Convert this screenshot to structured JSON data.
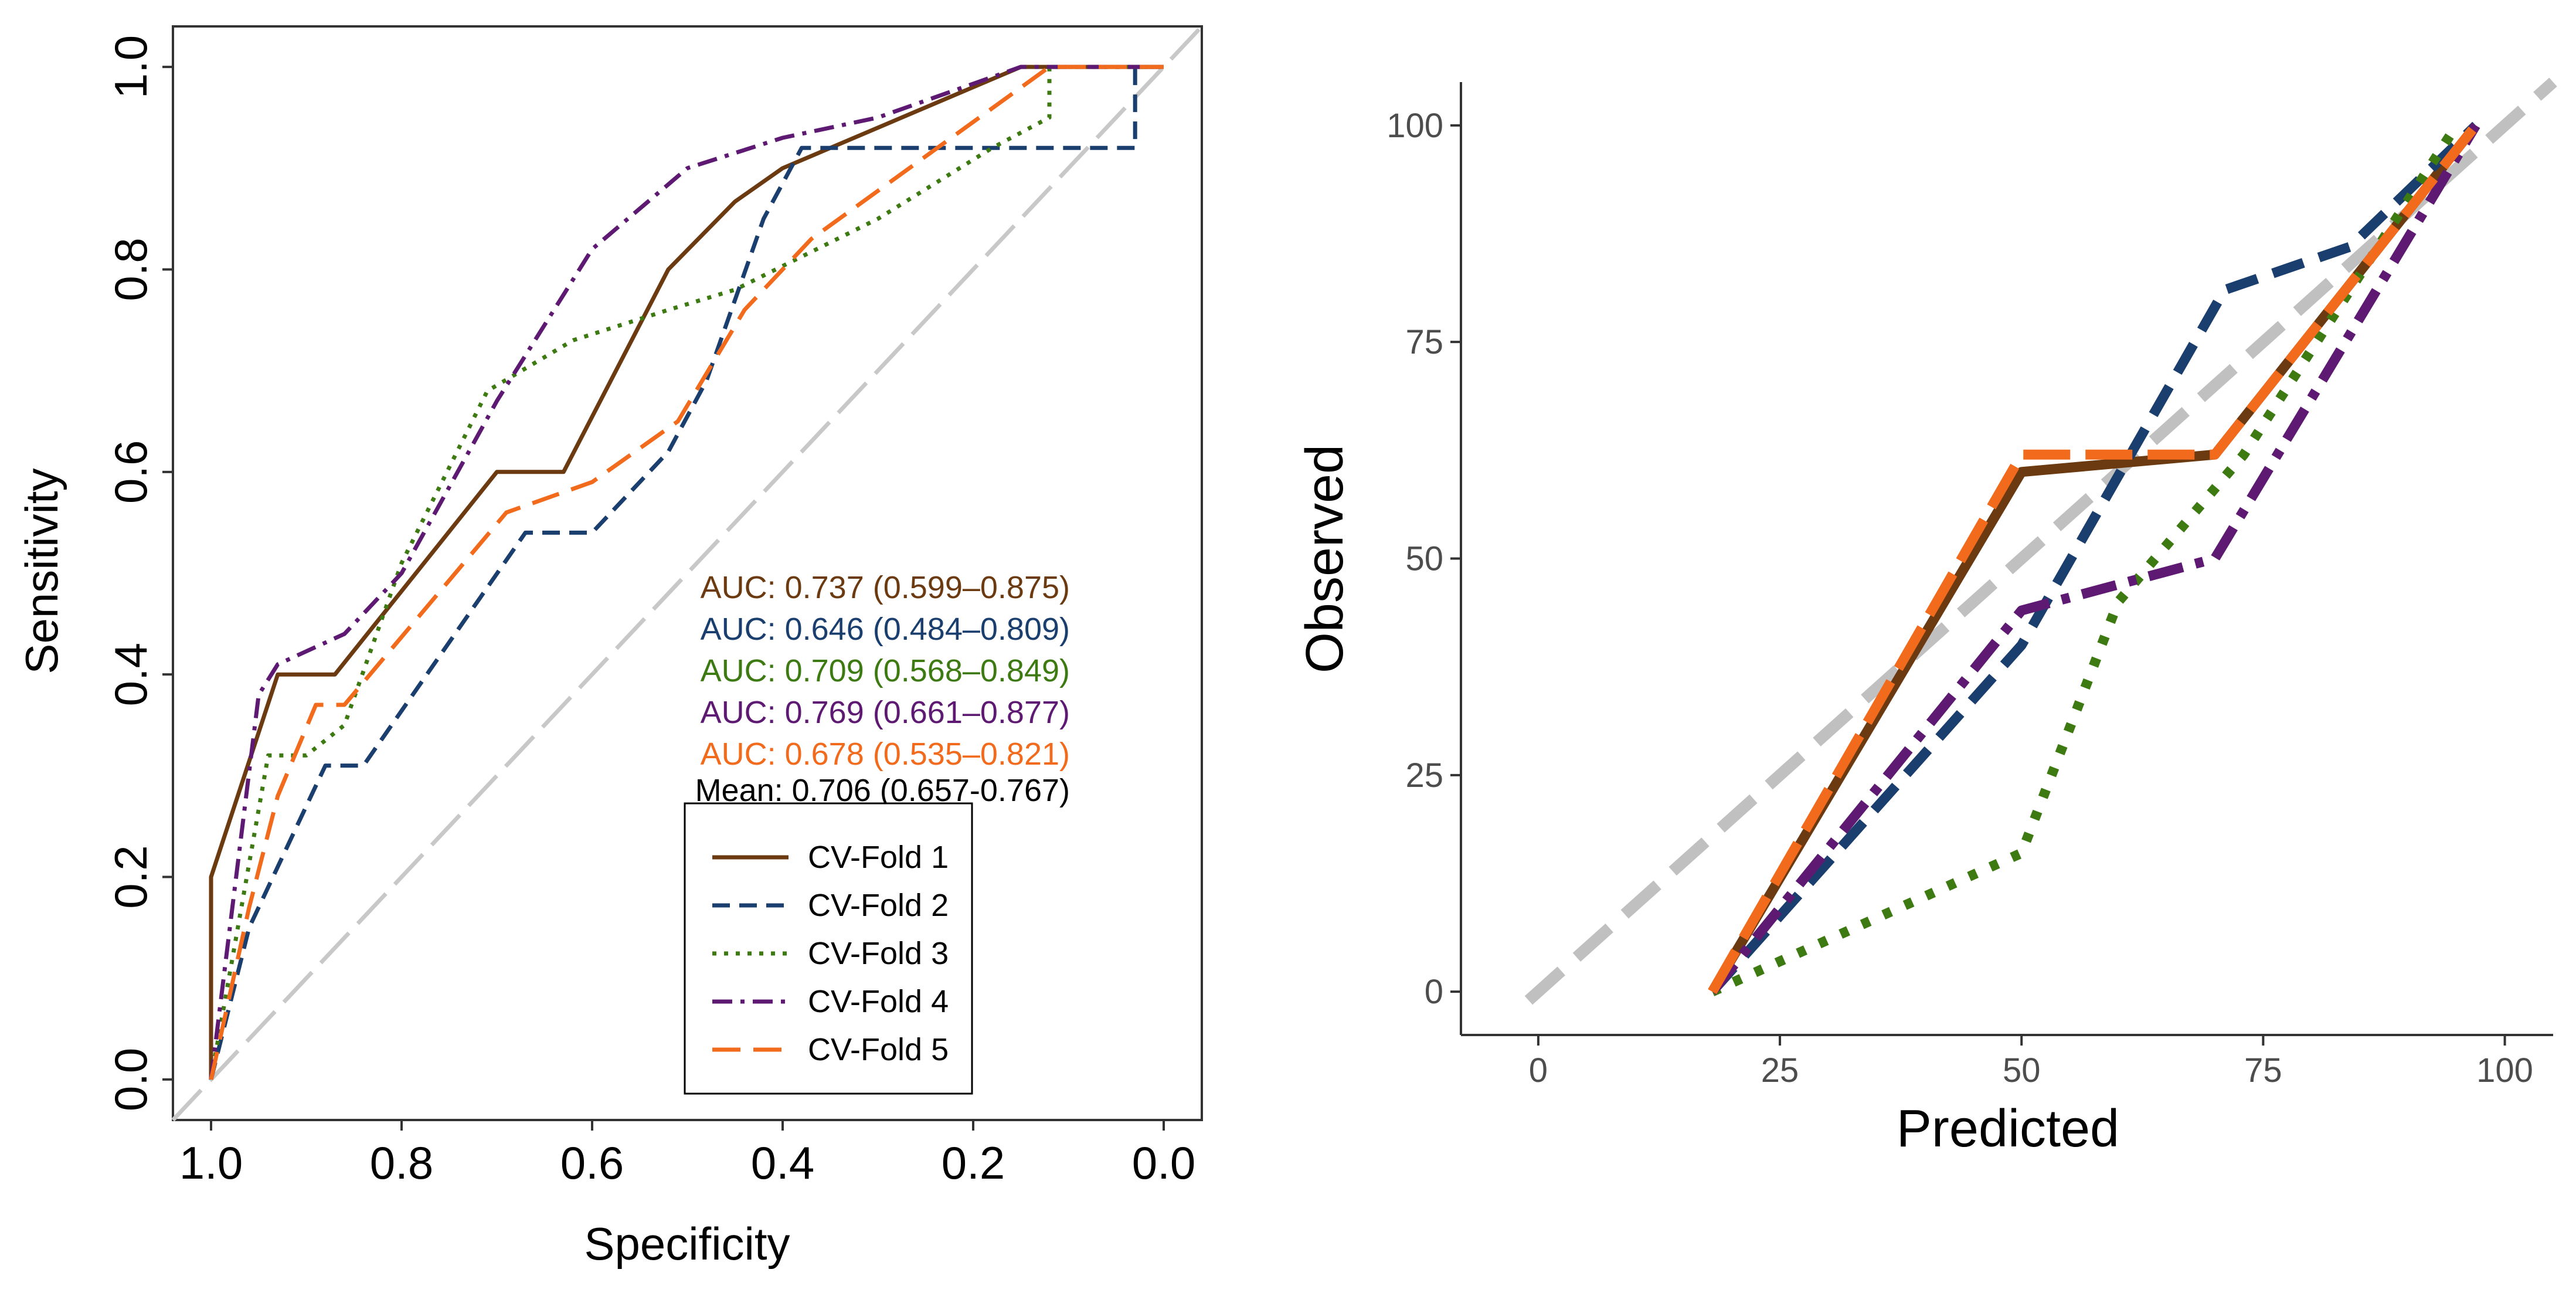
{
  "chart_data": [
    {
      "type": "line",
      "plot": "roc",
      "xlabel": "Specificity",
      "ylabel": "Sensitivity",
      "xlim": [
        1.04,
        -0.04
      ],
      "ylim": [
        -0.04,
        1.04
      ],
      "x_reversed": true,
      "grid": false,
      "legend_position": "bottom-right",
      "xticks": [
        1.0,
        0.8,
        0.6,
        0.4,
        0.2,
        0.0
      ],
      "xtick_labels": [
        "1.0",
        "0.8",
        "0.6",
        "0.4",
        "0.2",
        "0.0"
      ],
      "yticks": [
        0.0,
        0.2,
        0.4,
        0.6,
        0.8,
        1.0
      ],
      "ytick_labels": [
        "0.0",
        "0.2",
        "0.4",
        "0.6",
        "0.8",
        "1.0"
      ],
      "reference_line": {
        "x": [
          1.04,
          -0.04
        ],
        "y": [
          -0.04,
          1.04
        ],
        "color": "#c8c8c8"
      },
      "auc_labels": [
        {
          "prefix": "AUC: 0.737 (",
          "ci": "0.599–0.875",
          "suffix": ")",
          "color": "#6b3a10"
        },
        {
          "prefix": "AUC: 0.646 (",
          "ci": "0.484–0.809",
          "suffix": ")",
          "color": "#1a3e6e"
        },
        {
          "prefix": "AUC: 0.709 (",
          "ci": "0.568–0.849",
          "suffix": ")",
          "color": "#3d7a12"
        },
        {
          "prefix": "AUC: 0.769 (",
          "ci": "0.661–0.877",
          "suffix": ")",
          "color": "#5e1a72"
        },
        {
          "prefix": "AUC: 0.678 (",
          "ci": "0.535–0.821",
          "suffix": ")",
          "color": "#f26a1b"
        }
      ],
      "mean_label": {
        "prefix": "Mean: 0.706 (",
        "ci": "0.657-0.767",
        "suffix": ")",
        "color": "#000000"
      },
      "series": [
        {
          "name": "CV-Fold 1",
          "color": "#6b3a10",
          "dash": "solid",
          "x": [
            1.0,
            1.0,
            0.93,
            0.87,
            0.7,
            0.63,
            0.52,
            0.45,
            0.4,
            0.15,
            0.0
          ],
          "y": [
            0.0,
            0.2,
            0.4,
            0.4,
            0.6,
            0.6,
            0.8,
            0.867,
            0.9,
            1.0,
            1.0
          ]
        },
        {
          "name": "CV-Fold 2",
          "color": "#1a3e6e",
          "dash": "dashed",
          "x": [
            1.0,
            0.96,
            0.88,
            0.84,
            0.67,
            0.6,
            0.52,
            0.48,
            0.42,
            0.38,
            0.03,
            0.03,
            0.0
          ],
          "y": [
            0.0,
            0.15,
            0.31,
            0.31,
            0.54,
            0.54,
            0.62,
            0.69,
            0.85,
            0.92,
            0.92,
            1.0,
            1.0
          ]
        },
        {
          "name": "CV-Fold 3",
          "color": "#3d7a12",
          "dash": "dotted",
          "x": [
            1.0,
            0.94,
            0.9,
            0.86,
            0.8,
            0.71,
            0.62,
            0.52,
            0.45,
            0.3,
            0.18,
            0.12,
            0.12,
            0.0
          ],
          "y": [
            0.0,
            0.32,
            0.32,
            0.35,
            0.51,
            0.68,
            0.73,
            0.76,
            0.78,
            0.85,
            0.92,
            0.95,
            1.0,
            1.0
          ]
        },
        {
          "name": "CV-Fold 4",
          "color": "#5e1a72",
          "dash": "dashdot",
          "x": [
            1.0,
            0.95,
            0.93,
            0.86,
            0.8,
            0.7,
            0.6,
            0.5,
            0.4,
            0.3,
            0.15,
            0.0
          ],
          "y": [
            0.0,
            0.38,
            0.41,
            0.44,
            0.5,
            0.67,
            0.82,
            0.9,
            0.93,
            0.95,
            1.0,
            1.0
          ]
        },
        {
          "name": "CV-Fold 5",
          "color": "#f26a1b",
          "dash": "longdash",
          "x": [
            1.0,
            0.96,
            0.93,
            0.89,
            0.86,
            0.69,
            0.6,
            0.51,
            0.44,
            0.37,
            0.12,
            0.0
          ],
          "y": [
            0.0,
            0.17,
            0.28,
            0.37,
            0.37,
            0.56,
            0.59,
            0.65,
            0.76,
            0.83,
            1.0,
            1.0
          ]
        }
      ]
    },
    {
      "type": "line",
      "plot": "calibration",
      "xlabel": "Predicted",
      "ylabel": "Observed",
      "xlim": [
        -8,
        105
      ],
      "ylim": [
        -5,
        105
      ],
      "grid": false,
      "xticks": [
        0,
        25,
        50,
        75,
        100
      ],
      "xtick_labels": [
        "0",
        "25",
        "50",
        "75",
        "100"
      ],
      "yticks": [
        0,
        25,
        50,
        75,
        100
      ],
      "ytick_labels": [
        "0",
        "25",
        "50",
        "75",
        "100"
      ],
      "reference_line": {
        "x": [
          -1,
          105
        ],
        "y": [
          -1,
          105
        ],
        "color": "#c0c0c0"
      },
      "series": [
        {
          "name": "CV-Fold 1",
          "color": "#6b3a10",
          "dash": "solid",
          "x": [
            18,
            50,
            70,
            97
          ],
          "y": [
            0,
            60,
            62,
            100
          ]
        },
        {
          "name": "CV-Fold 2",
          "color": "#1a3e6e",
          "dash": "dashed",
          "x": [
            18,
            50,
            71,
            84,
            97
          ],
          "y": [
            0,
            40,
            81,
            86,
            100
          ]
        },
        {
          "name": "CV-Fold 3",
          "color": "#3d7a12",
          "dash": "dotted",
          "x": [
            18,
            50,
            60,
            73,
            95
          ],
          "y": [
            0,
            16,
            45,
            62,
            100
          ]
        },
        {
          "name": "CV-Fold 4",
          "color": "#5e1a72",
          "dash": "dashdot",
          "x": [
            18,
            50,
            70,
            97
          ],
          "y": [
            0,
            44,
            50,
            100
          ]
        },
        {
          "name": "CV-Fold 5",
          "color": "#f26a1b",
          "dash": "longdash",
          "x": [
            18,
            50,
            70,
            97
          ],
          "y": [
            0,
            62,
            62,
            100
          ]
        }
      ]
    }
  ]
}
